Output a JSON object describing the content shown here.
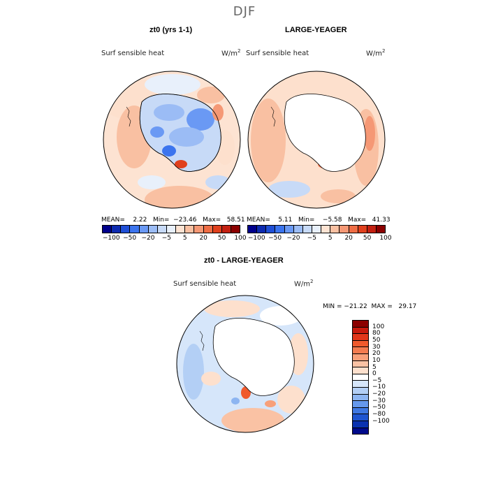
{
  "season": "DJF",
  "panels": [
    {
      "title": "zt0 (yrs 1-1)",
      "variable": "Surf sensible heat",
      "units_base": "W/m",
      "units_exp": "2",
      "stats": "MEAN=    2.22   Min=  −23.46   Max=   58.51"
    },
    {
      "title": "LARGE-YEAGER",
      "variable": "Surf sensible heat",
      "units_base": "W/m",
      "units_exp": "2",
      "stats": "MEAN=    5.11   Min=    −5.58   Max=   41.33"
    },
    {
      "title": "zt0 - LARGE-YEAGER",
      "variable": "Surf sensible heat",
      "units_base": "W/m",
      "units_exp": "2",
      "stats": "MIN = −21.22  MAX =   29.17"
    }
  ],
  "colorbar_top": {
    "colors": [
      "#00008b",
      "#0d2bb0",
      "#1f4fd6",
      "#3b74ee",
      "#6a99f4",
      "#9bbcf5",
      "#c7daf7",
      "#e8f0fb",
      "#fde3d2",
      "#f9c0a2",
      "#f59875",
      "#ef6d45",
      "#e0401d",
      "#c32011",
      "#8b0000"
    ],
    "tick_labels": [
      "−100",
      "−50",
      "−20",
      "−5",
      "5",
      "20",
      "50",
      "100"
    ]
  },
  "colorbar_diff": {
    "colors": [
      "#8b0000",
      "#c81a0d",
      "#e2361a",
      "#f05a2d",
      "#f37c50",
      "#f7a07a",
      "#fac2a4",
      "#fde0cd",
      "#ffffff",
      "#d6e6fa",
      "#b3cff5",
      "#8db5f1",
      "#6598ec",
      "#3f78e2",
      "#1f55d0",
      "#0a32b0",
      "#000a8b"
    ],
    "tick_labels": [
      "100",
      "80",
      "50",
      "30",
      "20",
      "10",
      "5",
      "0",
      "−5",
      "−10",
      "−20",
      "−30",
      "−50",
      "−80",
      "−100"
    ]
  }
}
